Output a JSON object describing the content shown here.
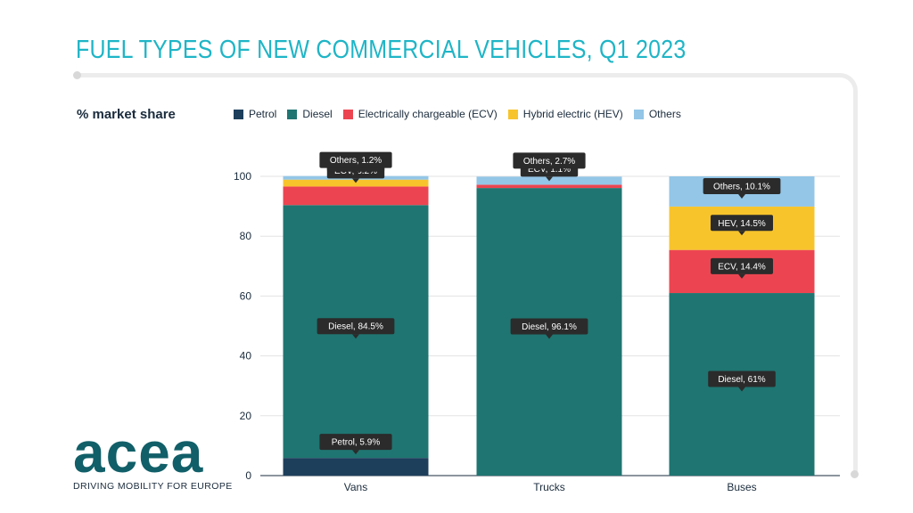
{
  "title": "FUEL TYPES OF NEW COMMERCIAL VEHICLES, Q1 2023",
  "colors": {
    "Petrol": "#1d3f5c",
    "Diesel": "#1f7571",
    "ECV": "#ec4551",
    "HEV": "#f8c42c",
    "Others": "#93c6e7",
    "title": "#1fb5c6",
    "tooltip": "#2b2b2b"
  },
  "logo": {
    "wordmark": "acea",
    "tagline": "DRIVING MOBILITY FOR EUROPE"
  },
  "chart_data": {
    "type": "bar",
    "stacked": true,
    "title": "FUEL TYPES OF NEW COMMERCIAL VEHICLES, Q1 2023",
    "ylabel": "% market share",
    "xlabel": "",
    "ylim": [
      0,
      100
    ],
    "yticks": [
      0,
      20,
      40,
      60,
      80,
      100
    ],
    "grid": true,
    "legend_position": "top",
    "categories": [
      "Vans",
      "Trucks",
      "Buses"
    ],
    "series": [
      {
        "key": "Petrol",
        "name": "Petrol",
        "short": "Petrol",
        "values": [
          5.9,
          0,
          0
        ]
      },
      {
        "key": "Diesel",
        "name": "Diesel",
        "short": "Diesel",
        "values": [
          84.5,
          96.1,
          61
        ]
      },
      {
        "key": "ECV",
        "name": "Electrically chargeable (ECV)",
        "short": "ECV",
        "values": [
          6.2,
          1.1,
          14.4
        ]
      },
      {
        "key": "HEV",
        "name": "Hybrid electric (HEV)",
        "short": "HEV",
        "values": [
          2.3,
          0,
          14.5
        ]
      },
      {
        "key": "Others",
        "name": "Others",
        "short": "Others",
        "values": [
          1.2,
          2.7,
          10.1
        ]
      }
    ],
    "labels": [
      {
        "category": 0,
        "series": "Petrol",
        "text": "Petrol, 5.9%"
      },
      {
        "category": 0,
        "series": "Diesel",
        "text": "Diesel, 84.5%"
      },
      {
        "category": 0,
        "series": "ECV",
        "text": "ECV, 6.2%"
      },
      {
        "category": 0,
        "series": "HEV",
        "text": "HEV, 2.3%"
      },
      {
        "category": 0,
        "series": "Others",
        "text": "Others, 1.2%"
      },
      {
        "category": 1,
        "series": "Diesel",
        "text": "Diesel, 96.1%"
      },
      {
        "category": 1,
        "series": "ECV",
        "text": "ECV, 1.1%"
      },
      {
        "category": 1,
        "series": "Others",
        "text": "Others, 2.7%"
      },
      {
        "category": 2,
        "series": "Diesel",
        "text": "Diesel, 61%"
      },
      {
        "category": 2,
        "series": "ECV",
        "text": "ECV, 14.4%"
      },
      {
        "category": 2,
        "series": "HEV",
        "text": "HEV, 14.5%"
      },
      {
        "category": 2,
        "series": "Others",
        "text": "Others, 10.1%"
      }
    ]
  }
}
